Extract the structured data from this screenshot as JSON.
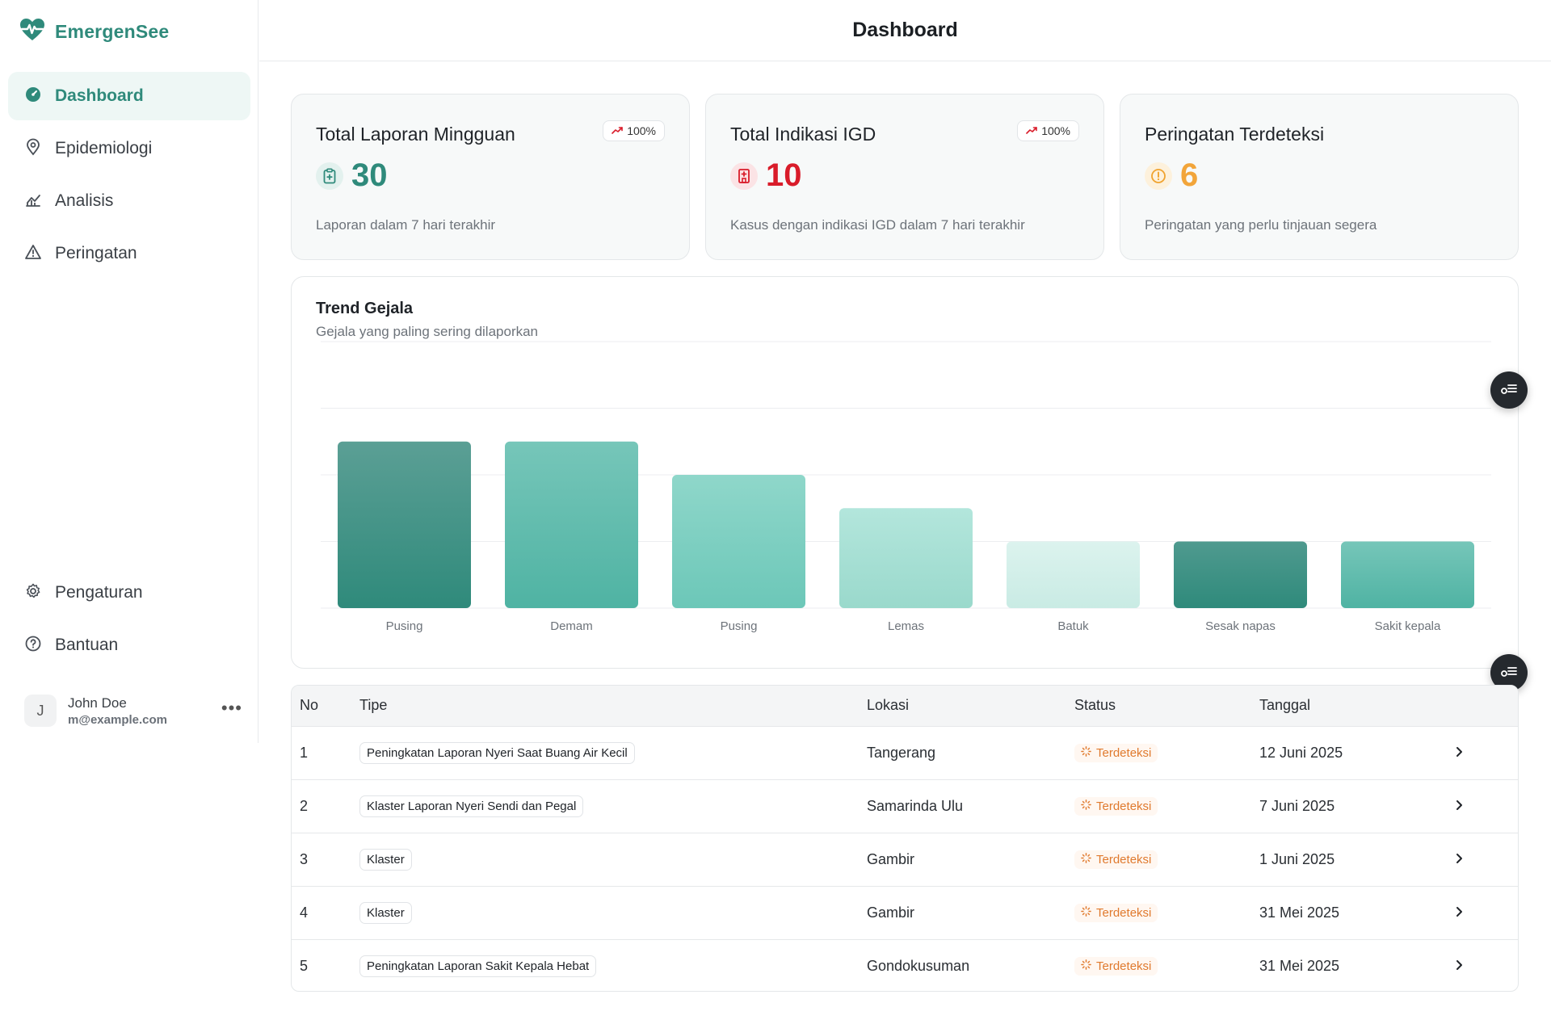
{
  "app": {
    "name": "EmergenSee"
  },
  "header": {
    "title": "Dashboard"
  },
  "sidebar": {
    "items": [
      {
        "label": "Dashboard",
        "icon": "dashboard-icon",
        "active": true
      },
      {
        "label": "Epidemiologi",
        "icon": "map-pin-icon",
        "active": false
      },
      {
        "label": "Analisis",
        "icon": "chart-icon",
        "active": false
      },
      {
        "label": "Peringatan",
        "icon": "warning-icon",
        "active": false
      }
    ],
    "bottom_items": [
      {
        "label": "Pengaturan",
        "icon": "gear-icon"
      },
      {
        "label": "Bantuan",
        "icon": "help-icon"
      }
    ],
    "user": {
      "initial": "J",
      "name": "John Doe",
      "email": "m@example.com",
      "more": "•••"
    }
  },
  "stats": [
    {
      "title": "Total Laporan Mingguan",
      "value": "30",
      "trend": "100%",
      "subtitle": "Laporan dalam 7 hari terakhir",
      "color": "#2f8a7b",
      "icon": "clipboard-icon"
    },
    {
      "title": "Total Indikasi IGD",
      "value": "10",
      "trend": "100%",
      "subtitle": "Kasus dengan indikasi IGD dalam 7 hari terakhir",
      "color": "#d91c2a",
      "icon": "hospital-icon"
    },
    {
      "title": "Peringatan Terdeteksi",
      "value": "6",
      "subtitle": "Peringatan yang perlu tinjauan segera",
      "color": "#f2a53a",
      "icon": "alert-circle-icon"
    }
  ],
  "chart": {
    "title": "Trend Gejala",
    "subtitle": "Gejala yang paling sering dilaporkan"
  },
  "chart_data": {
    "type": "bar",
    "categories": [
      "Pusing",
      "Demam",
      "Pusing",
      "Lemas",
      "Batuk",
      "Sesak napas",
      "Sakit kepala"
    ],
    "values": [
      5,
      5,
      4,
      3,
      2,
      2,
      2
    ],
    "ylim": [
      0,
      8
    ],
    "grid": true,
    "bar_gradients": [
      [
        "#5b9f95",
        "#2f8a7b"
      ],
      [
        "#76c6b9",
        "#4fb3a3"
      ],
      [
        "#8fd7ca",
        "#6cc7b8"
      ],
      [
        "#b3e6dc",
        "#9ad9cc"
      ],
      [
        "#dcf3ee",
        "#c9ebe4"
      ],
      [
        "#4f9a8f",
        "#2f8a7b"
      ],
      [
        "#76c6b9",
        "#4fb3a3"
      ]
    ]
  },
  "table": {
    "headers": [
      "No",
      "Tipe",
      "Lokasi",
      "Status",
      "Tanggal"
    ],
    "rows": [
      {
        "no": "1",
        "type": "Peningkatan Laporan Nyeri Saat Buang Air Kecil",
        "location": "Tangerang",
        "status": "Terdeteksi",
        "date": "12 Juni 2025"
      },
      {
        "no": "2",
        "type": "Klaster Laporan Nyeri Sendi dan Pegal",
        "location": "Samarinda Ulu",
        "status": "Terdeteksi",
        "date": "7 Juni 2025"
      },
      {
        "no": "3",
        "type": "Klaster",
        "location": "Gambir",
        "status": "Terdeteksi",
        "date": "1 Juni 2025"
      },
      {
        "no": "4",
        "type": "Klaster",
        "location": "Gambir",
        "status": "Terdeteksi",
        "date": "31 Mei 2025"
      },
      {
        "no": "5",
        "type": "Peningkatan Laporan Sakit Kepala Hebat",
        "location": "Gondokusuman",
        "status": "Terdeteksi",
        "date": "31 Mei 2025"
      }
    ]
  }
}
